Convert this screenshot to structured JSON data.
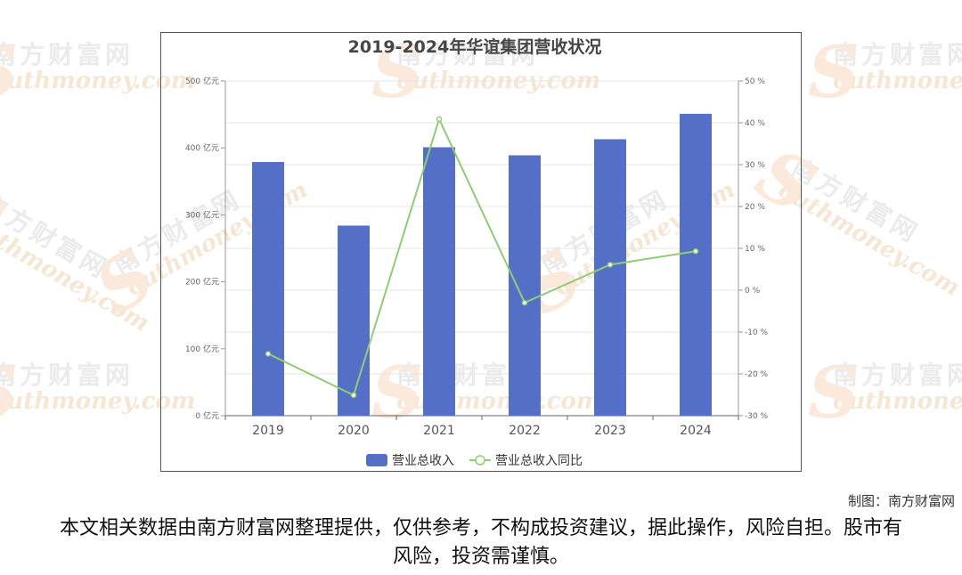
{
  "watermark": {
    "cn": "南方财富网",
    "en": "outhmoney.com",
    "s": "S"
  },
  "credit": "制图：南方财富网",
  "disclaimer": "本文相关数据由南方财富网整理提供，仅供参考，不构成投资建议，据此操作，风险自担。股市有风险，投资需谨慎。",
  "chart_data": {
    "type": "bar+line",
    "title": "2019-2024年华谊集团营收状况",
    "categories": [
      "2019",
      "2020",
      "2021",
      "2022",
      "2023",
      "2024"
    ],
    "series": [
      {
        "name": "营业总收入",
        "type": "bar",
        "axis": "left",
        "color": "#5470c6",
        "values": [
          379,
          284,
          401,
          389,
          413,
          451
        ]
      },
      {
        "name": "营业总收入同比",
        "type": "line",
        "axis": "right",
        "color": "#91cc75",
        "values": [
          -15.2,
          -25.1,
          40.9,
          -3.0,
          6.1,
          9.3
        ]
      }
    ],
    "left_axis": {
      "min": 0,
      "max": 500,
      "step": 100,
      "unit": " 亿元"
    },
    "right_axis": {
      "min": -30,
      "max": 50,
      "step": 10,
      "unit": " %"
    },
    "legend_position": "bottom-center",
    "grid": true
  }
}
